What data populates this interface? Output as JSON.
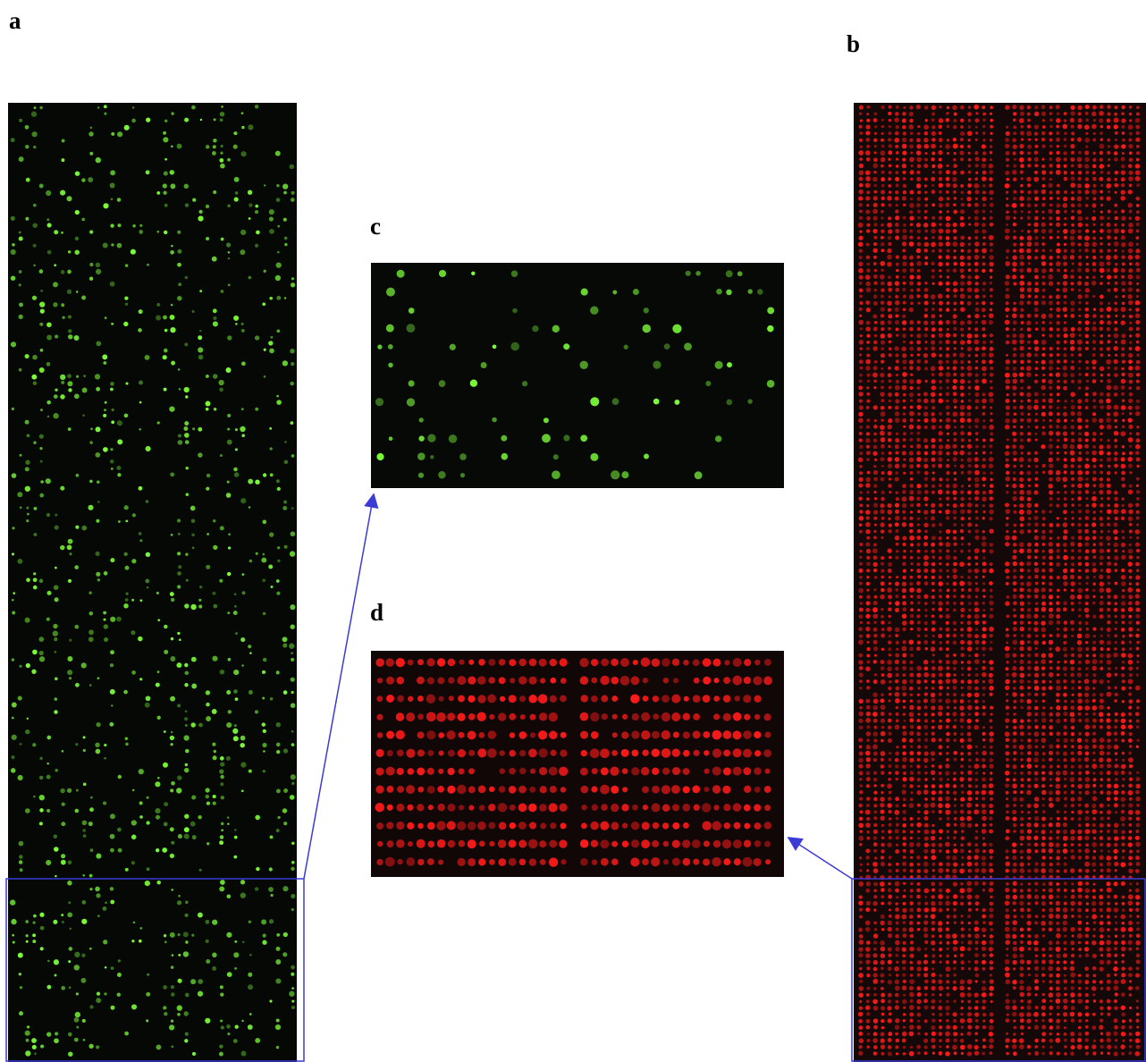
{
  "labels": {
    "a": "a",
    "b": "b",
    "c": "c",
    "d": "d"
  },
  "colors": {
    "green_spot": "#7dff3a",
    "red_spot": "#ff1a1a",
    "callout": "#3b3bd6"
  }
}
